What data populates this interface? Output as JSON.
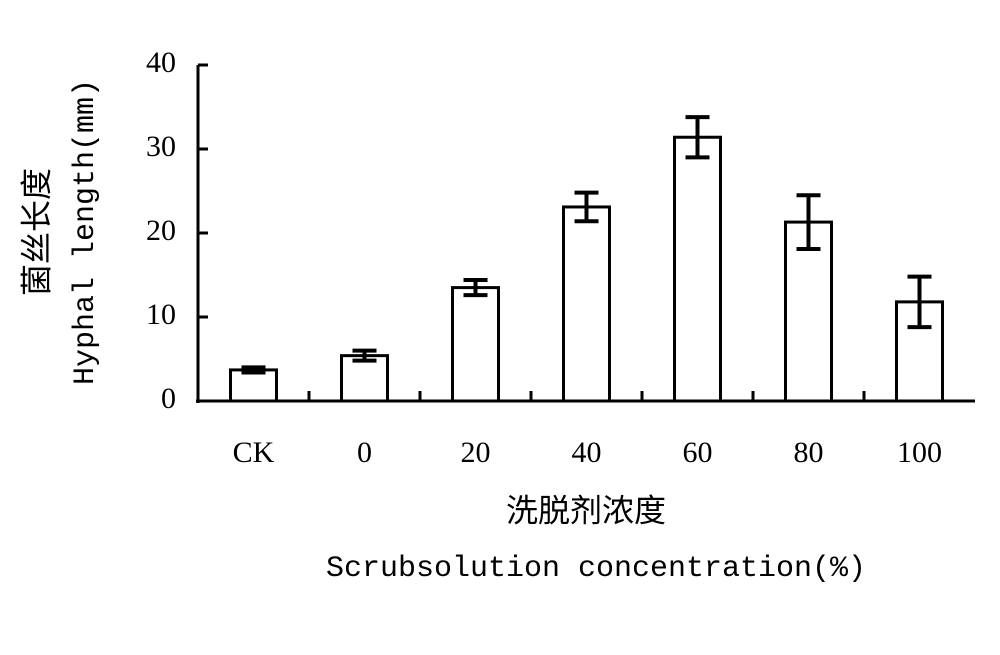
{
  "chart_data": {
    "type": "bar",
    "y_label": "菌丝长度",
    "y_label_en": "Hyphal length(mm)",
    "x_label": "洗脱剂浓度",
    "x_label_en": "Scrubsolution concentration(%)",
    "categories": [
      "CK",
      "0",
      "20",
      "40",
      "60",
      "80",
      "100"
    ],
    "values": [
      3.7,
      5.4,
      13.5,
      23.1,
      31.4,
      21.3,
      11.8
    ],
    "errors": [
      0.3,
      0.6,
      0.9,
      1.7,
      2.4,
      3.2,
      3.0
    ],
    "color": "#ffffff",
    "ylim": [
      0,
      40
    ],
    "yticks": [
      0,
      10,
      20,
      30,
      40
    ],
    "grid": false
  }
}
